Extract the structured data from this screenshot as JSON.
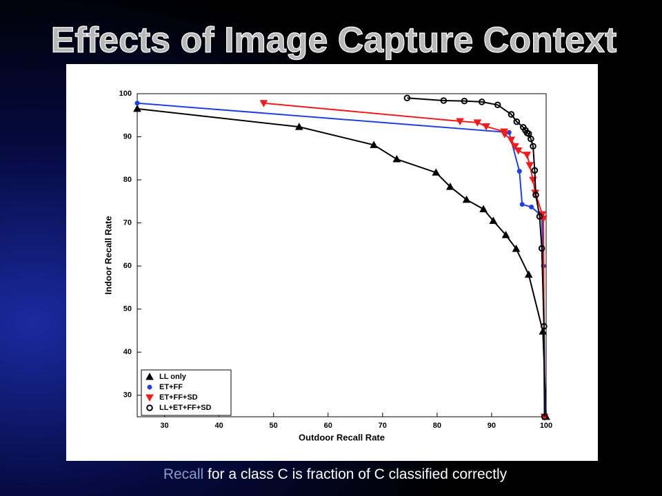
{
  "slide": {
    "title": "Effects of Image Capture Context",
    "caption_highlight": "Recall",
    "caption_rest": "for a class C is fraction of C classified correctly"
  },
  "chart_data": {
    "type": "line",
    "x_label": "Outdoor Recall Rate",
    "y_label": "Indoor Recall Rate",
    "xlim": [
      25,
      100
    ],
    "ylim": [
      25,
      100
    ],
    "xticks": [
      30,
      40,
      50,
      60,
      70,
      80,
      90,
      100
    ],
    "yticks": [
      30,
      40,
      50,
      60,
      70,
      80,
      90,
      100
    ],
    "legend": "lower left",
    "series": [
      {
        "name": "LL only",
        "color": "#000000",
        "marker": "triangle-up",
        "x": [
          25,
          54.7,
          68.4,
          72.6,
          79.8,
          82.4,
          85.4,
          88.5,
          90.3,
          92.6,
          94.5,
          96.8,
          99.4,
          100
        ],
        "values": [
          96.5,
          92.3,
          88.1,
          84.8,
          81.7,
          78.4,
          75.4,
          73.2,
          70.5,
          67.2,
          64,
          58,
          44.8,
          25
        ]
      },
      {
        "name": "ET+FF",
        "color": "#1f3fe0",
        "marker": "dot",
        "x": [
          25,
          93.2,
          95.1,
          95.6,
          97.3,
          99.2,
          99.5,
          99.8
        ],
        "values": [
          97.8,
          91,
          82,
          74.3,
          73.7,
          71.6,
          60,
          25
        ]
      },
      {
        "name": "ET+FF+SD",
        "color": "#ee1c1c",
        "marker": "triangle-down",
        "x": [
          48.2,
          84.2,
          87.4,
          89,
          92.3,
          92.4,
          93.6,
          94.3,
          94.9,
          96.5,
          97,
          97.6,
          98,
          99.3,
          99.5,
          99.7
        ],
        "values": [
          97.8,
          93.6,
          93.3,
          92.4,
          91.2,
          90.6,
          89.3,
          87.8,
          86.8,
          85.8,
          83.4,
          80,
          77,
          72,
          71,
          25
        ]
      },
      {
        "name": "LL+ET+FF+SD",
        "color": "#000000",
        "marker": "circle",
        "x": [
          74.5,
          81.2,
          85,
          88.2,
          91.1,
          93.6,
          94.6,
          95.8,
          96.2,
          96.5,
          96.8,
          97.2,
          97.6,
          97.9,
          98.1,
          98.8,
          99.2,
          99.6,
          99.7
        ],
        "values": [
          99,
          98.4,
          98.3,
          98.1,
          97.4,
          95.2,
          93.5,
          92.2,
          91.5,
          90.9,
          90.7,
          89.5,
          87.8,
          82.2,
          76.5,
          71.5,
          64.1,
          46,
          25
        ]
      }
    ]
  }
}
